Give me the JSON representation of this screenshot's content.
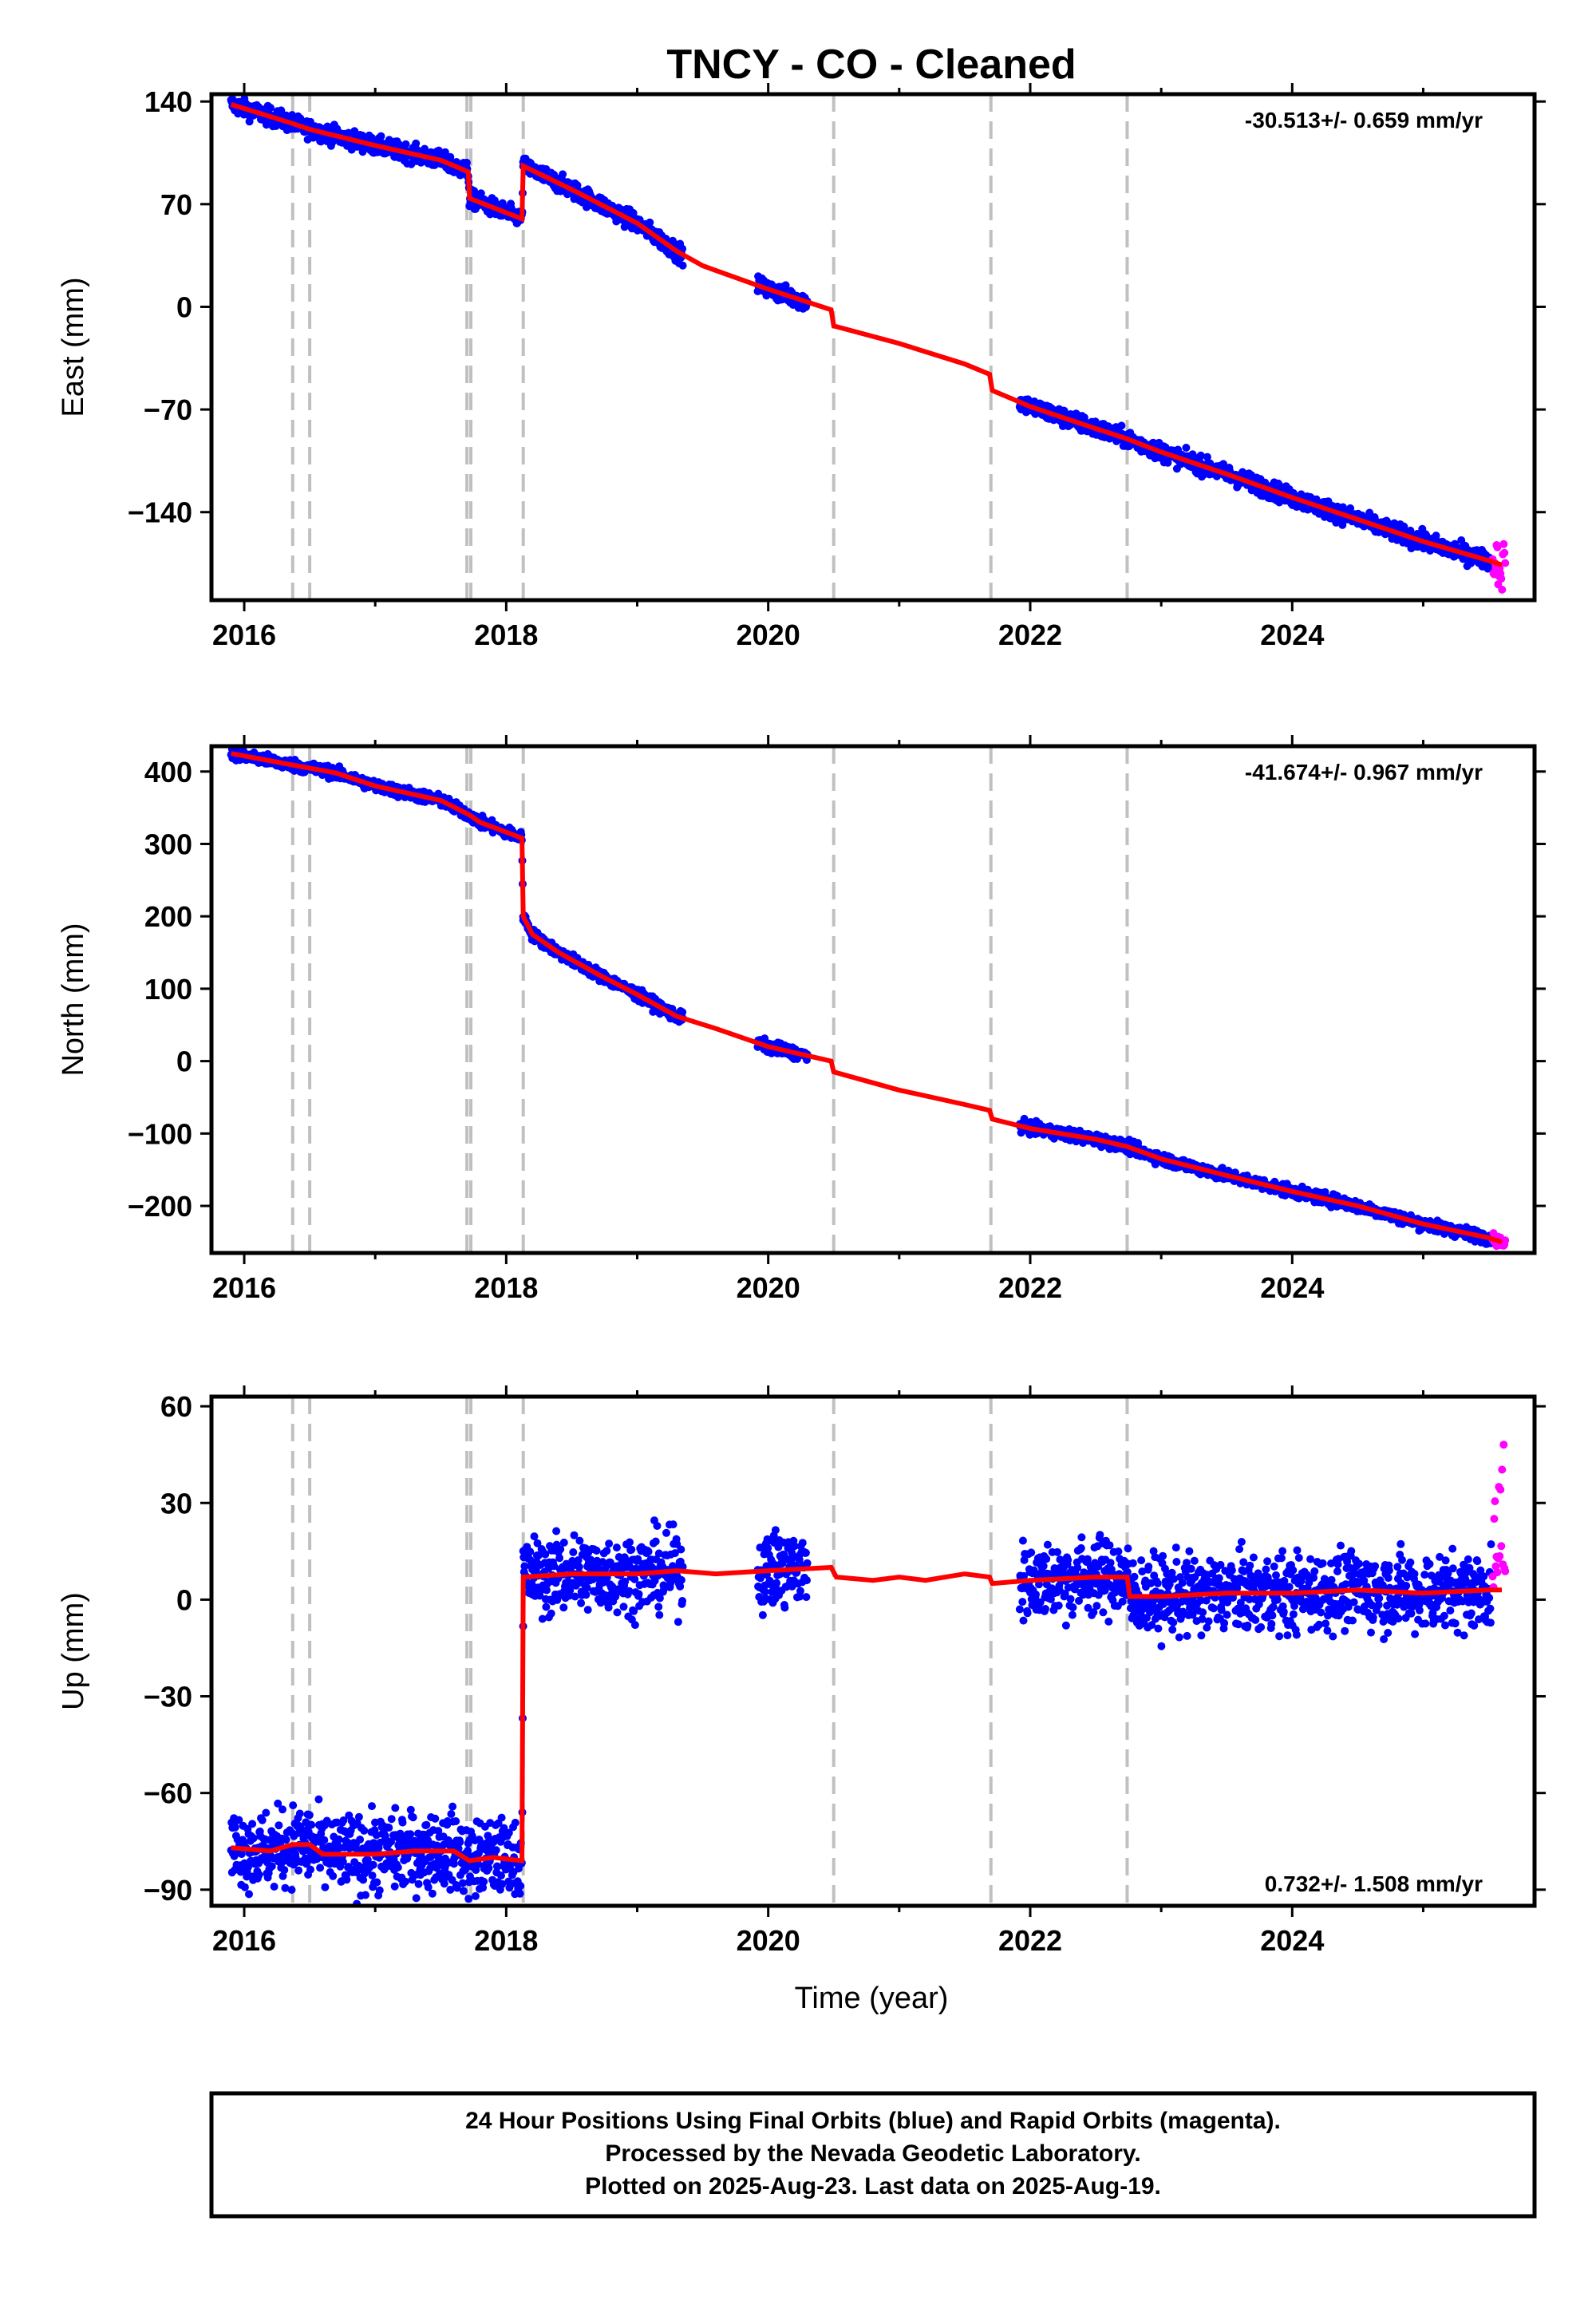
{
  "chart_data": {
    "type": "scatter",
    "title": "TNCY  - CO - Cleaned",
    "xlabel": "Time (year)",
    "xlim": [
      2015.75,
      2025.85
    ],
    "xticks": [
      2016,
      2018,
      2020,
      2022,
      2024
    ],
    "xtick_labels": [
      "2016",
      "2018",
      "2020",
      "2022",
      "2024"
    ],
    "event_lines": [
      2016.37,
      2016.5,
      2017.7,
      2017.73,
      2018.13,
      2020.5,
      2021.7,
      2022.74
    ],
    "colors": {
      "final": "#0000ff",
      "rapid": "#ff00ff",
      "model": "#ff0000",
      "events": "#c0c0c0"
    },
    "footer": {
      "line1": "24 Hour Positions Using Final Orbits (blue) and Rapid Orbits (magenta).",
      "line2": "Processed by the Nevada Geodetic Laboratory.",
      "line3": "Plotted on 2025-Aug-23. Last data on 2025-Aug-19."
    },
    "panels": [
      {
        "name": "east",
        "ylabel": "East (mm)",
        "ylim": [
          -200,
          145
        ],
        "yticks": [
          140,
          70,
          0,
          -70,
          -140
        ],
        "ytick_labels": [
          "140",
          "70",
          "0",
          "−70",
          "−140"
        ],
        "rate": "-30.513+/- 0.659 mm/yr",
        "rate_position": "top-right",
        "data_segments": [
          [
            2015.9,
            2018.13
          ],
          [
            2018.13,
            2019.35
          ],
          [
            2019.92,
            2020.3
          ],
          [
            2021.92,
            2025.52
          ]
        ],
        "rapid_segment": [
          2025.53,
          2025.63
        ],
        "model": [
          [
            2015.9,
            138
          ],
          [
            2016.37,
            125
          ],
          [
            2016.5,
            121
          ],
          [
            2017.0,
            110
          ],
          [
            2017.5,
            100
          ],
          [
            2017.71,
            92
          ],
          [
            2017.72,
            74
          ],
          [
            2018.12,
            60
          ],
          [
            2018.13,
            96
          ],
          [
            2018.5,
            80
          ],
          [
            2019.0,
            57
          ],
          [
            2019.3,
            38
          ],
          [
            2019.5,
            28
          ],
          [
            2020.0,
            12
          ],
          [
            2020.48,
            -2
          ],
          [
            2020.5,
            -13
          ],
          [
            2021.0,
            -25
          ],
          [
            2021.5,
            -39
          ],
          [
            2021.69,
            -46
          ],
          [
            2021.71,
            -57
          ],
          [
            2022.0,
            -68
          ],
          [
            2022.5,
            -83
          ],
          [
            2022.74,
            -90
          ],
          [
            2023.0,
            -99
          ],
          [
            2023.5,
            -114
          ],
          [
            2024.0,
            -130
          ],
          [
            2024.5,
            -145
          ],
          [
            2025.0,
            -160
          ],
          [
            2025.5,
            -173
          ],
          [
            2025.6,
            -176
          ]
        ],
        "noise": 3.0,
        "rapid_noise": 14
      },
      {
        "name": "north",
        "ylabel": "North (mm)",
        "ylim": [
          -265,
          435
        ],
        "yticks": [
          400,
          300,
          200,
          100,
          0,
          -100,
          -200
        ],
        "ytick_labels": [
          "400",
          "300",
          "200",
          "100",
          "0",
          "−100",
          "−200"
        ],
        "rate": "-41.674+/- 0.967 mm/yr",
        "rate_position": "top-right",
        "data_segments": [
          [
            2015.9,
            2018.13
          ],
          [
            2018.13,
            2019.35
          ],
          [
            2019.92,
            2020.3
          ],
          [
            2021.92,
            2025.52
          ]
        ],
        "rapid_segment": [
          2025.53,
          2025.63
        ],
        "model": [
          [
            2015.9,
            425
          ],
          [
            2016.4,
            408
          ],
          [
            2016.7,
            398
          ],
          [
            2017.0,
            380
          ],
          [
            2017.5,
            360
          ],
          [
            2017.72,
            340
          ],
          [
            2017.8,
            330
          ],
          [
            2018.12,
            308
          ],
          [
            2018.13,
            200
          ],
          [
            2018.2,
            175
          ],
          [
            2018.4,
            150
          ],
          [
            2018.7,
            120
          ],
          [
            2019.0,
            92
          ],
          [
            2019.3,
            62
          ],
          [
            2019.6,
            45
          ],
          [
            2020.0,
            20
          ],
          [
            2020.48,
            0
          ],
          [
            2020.5,
            -15
          ],
          [
            2021.0,
            -40
          ],
          [
            2021.5,
            -60
          ],
          [
            2021.69,
            -68
          ],
          [
            2021.71,
            -80
          ],
          [
            2022.0,
            -93
          ],
          [
            2022.5,
            -108
          ],
          [
            2022.74,
            -118
          ],
          [
            2023.0,
            -135
          ],
          [
            2023.5,
            -158
          ],
          [
            2024.0,
            -180
          ],
          [
            2024.5,
            -200
          ],
          [
            2025.0,
            -225
          ],
          [
            2025.5,
            -244
          ],
          [
            2025.6,
            -250
          ]
        ],
        "noise": 4.0,
        "rapid_noise": 6
      },
      {
        "name": "up",
        "ylabel": "Up (mm)",
        "ylim": [
          -95,
          63
        ],
        "yticks": [
          60,
          30,
          0,
          -30,
          -60,
          -90
        ],
        "ytick_labels": [
          "60",
          "30",
          "0",
          "−30",
          "−60",
          "−90"
        ],
        "rate": "0.732+/- 1.508 mm/yr",
        "rate_position": "bottom-right",
        "data_segments": [
          [
            2015.9,
            2018.13
          ],
          [
            2018.13,
            2019.35
          ],
          [
            2019.92,
            2020.3
          ],
          [
            2021.92,
            2025.52
          ]
        ],
        "rapid_segment": [
          2025.53,
          2025.63
        ],
        "model": [
          [
            2015.9,
            -77
          ],
          [
            2016.2,
            -78
          ],
          [
            2016.37,
            -76
          ],
          [
            2016.5,
            -76
          ],
          [
            2016.6,
            -79
          ],
          [
            2017.0,
            -79
          ],
          [
            2017.3,
            -78
          ],
          [
            2017.6,
            -78
          ],
          [
            2017.72,
            -81
          ],
          [
            2017.9,
            -80
          ],
          [
            2018.12,
            -81
          ],
          [
            2018.13,
            7
          ],
          [
            2018.5,
            8
          ],
          [
            2019.0,
            8
          ],
          [
            2019.3,
            9
          ],
          [
            2019.6,
            8
          ],
          [
            2020.0,
            9
          ],
          [
            2020.48,
            10
          ],
          [
            2020.52,
            7
          ],
          [
            2020.8,
            6
          ],
          [
            2021.0,
            7
          ],
          [
            2021.2,
            6
          ],
          [
            2021.5,
            8
          ],
          [
            2021.69,
            7
          ],
          [
            2021.71,
            5
          ],
          [
            2022.0,
            6
          ],
          [
            2022.5,
            7
          ],
          [
            2022.74,
            7
          ],
          [
            2022.76,
            1
          ],
          [
            2023.0,
            1
          ],
          [
            2023.5,
            2
          ],
          [
            2024.0,
            2
          ],
          [
            2024.5,
            3
          ],
          [
            2025.0,
            2
          ],
          [
            2025.5,
            3
          ],
          [
            2025.6,
            3
          ]
        ],
        "noise": 6.0,
        "rapid_noise": 20
      }
    ]
  }
}
